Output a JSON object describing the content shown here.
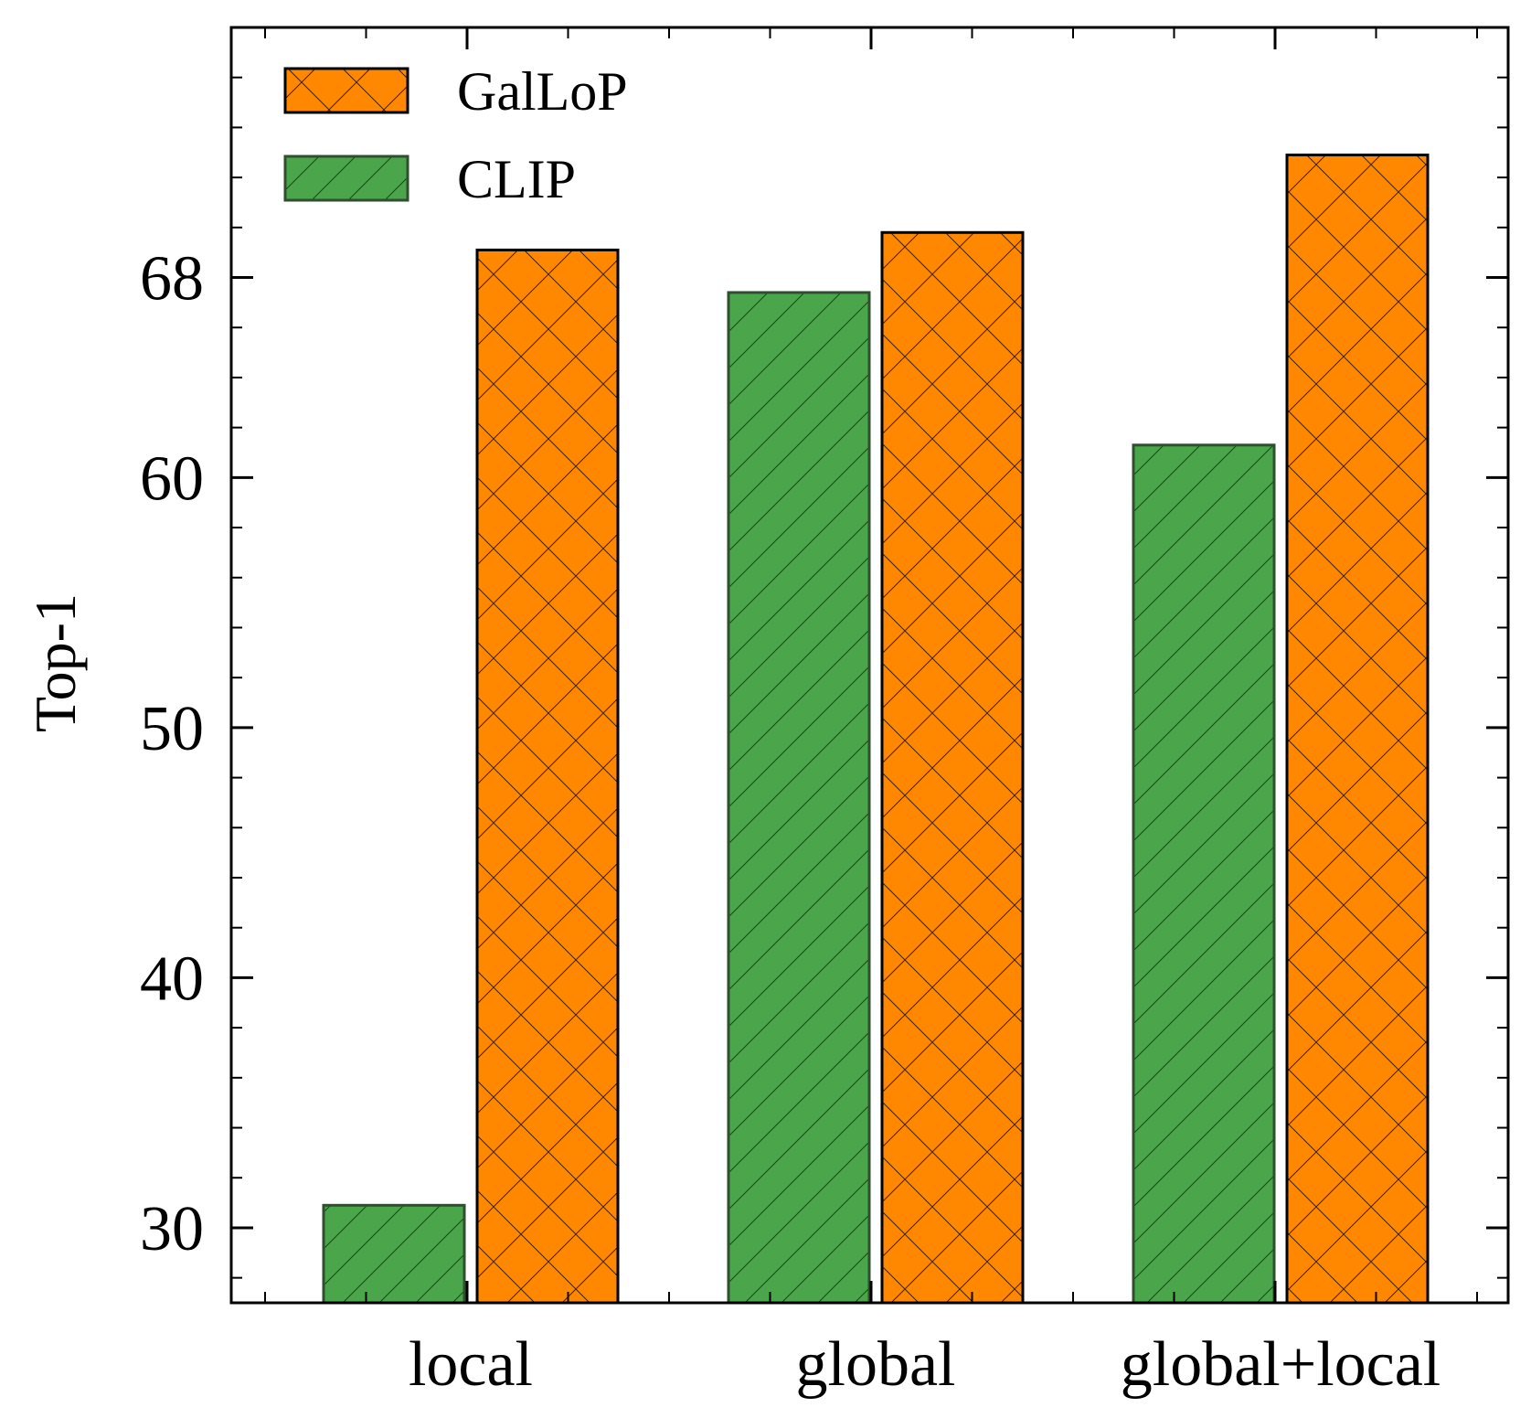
{
  "chart_data": {
    "type": "bar",
    "title": "",
    "xlabel": "",
    "ylabel": "Top-1",
    "categories": [
      "local",
      "global",
      "global+local"
    ],
    "series": [
      {
        "name": "CLIP",
        "values": [
          30.9,
          67.4,
          61.3
        ],
        "color": "#4ba64b",
        "hatch": "diagonal"
      },
      {
        "name": "GalLoP",
        "values": [
          69.1,
          69.8,
          72.9
        ],
        "color": "#ff8800",
        "hatch": "cross"
      }
    ],
    "yticks": [
      30,
      40,
      50,
      60,
      68
    ],
    "ylim": [
      27,
      78
    ],
    "legend": {
      "position": "top-left",
      "order": [
        "GalLoP",
        "CLIP"
      ]
    },
    "grid": false
  }
}
